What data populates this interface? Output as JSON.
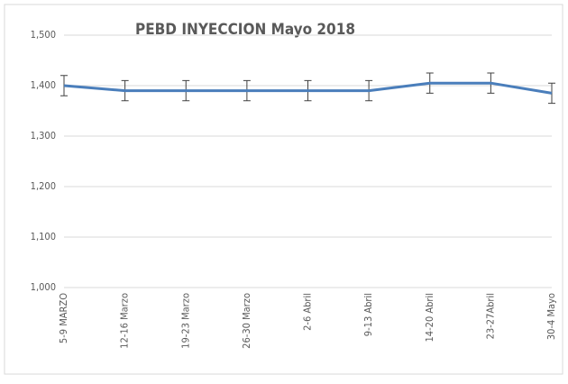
{
  "chart_data": {
    "type": "line",
    "title": "PEBD INYECCION Mayo 2018",
    "categories": [
      "5-9 MARZO",
      "12-16 Marzo",
      "19-23 Marzo",
      "26-30 Marzo",
      "2-6 Abril",
      "9-13 Abril",
      "14-20 Abril",
      "23-27Abril",
      "30-4 Mayo"
    ],
    "series": [
      {
        "color": "#4a7ebb",
        "values": [
          1400,
          1390,
          1390,
          1390,
          1390,
          1390,
          1405,
          1405,
          1385
        ],
        "errors": [
          20,
          20,
          20,
          20,
          20,
          20,
          20,
          20,
          20
        ]
      }
    ],
    "ylim": [
      1000,
      1500
    ],
    "yticks": [
      {
        "value": 1000,
        "label": "1,000"
      },
      {
        "value": 1100,
        "label": "1,100"
      },
      {
        "value": 1200,
        "label": "1,200"
      },
      {
        "value": 1300,
        "label": "1,300"
      },
      {
        "value": 1400,
        "label": "1,400"
      },
      {
        "value": 1500,
        "label": "1,500"
      }
    ],
    "grid": true
  }
}
